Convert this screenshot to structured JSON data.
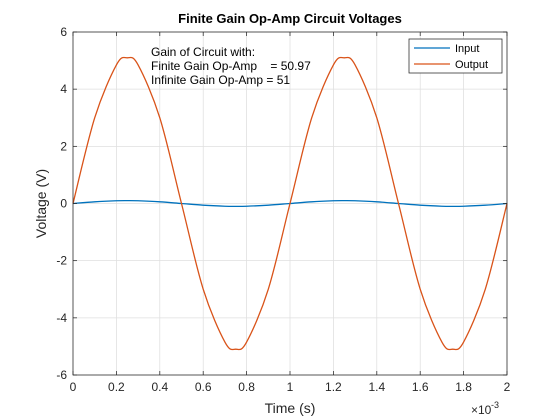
{
  "chart_data": {
    "type": "line",
    "title": "Finite Gain Op-Amp Circuit Voltages",
    "xlabel": "Time (s)",
    "ylabel": "Voltage (V)",
    "x_exponent_label": "×10",
    "x_exponent_power": "-3",
    "xlim": [
      0,
      0.002
    ],
    "ylim": [
      -6,
      6
    ],
    "x_ticks": [
      0,
      0.0002,
      0.0004,
      0.0006,
      0.0008,
      0.001,
      0.0012,
      0.0014,
      0.0016,
      0.0018,
      0.002
    ],
    "x_tick_labels": [
      "0",
      "0.2",
      "0.4",
      "0.6",
      "0.8",
      "1",
      "1.2",
      "1.4",
      "1.6",
      "1.8",
      "2"
    ],
    "y_ticks": [
      -6,
      -4,
      -2,
      0,
      2,
      4,
      6
    ],
    "y_tick_labels": [
      "-6",
      "-4",
      "-2",
      "0",
      "2",
      "4",
      "6"
    ],
    "grid": true,
    "legend_position": "top-right",
    "series": [
      {
        "name": "Input",
        "color": "#0072BD",
        "x": [
          0,
          0.0001,
          0.0002,
          0.00025,
          0.0003,
          0.0004,
          0.0005,
          0.0006,
          0.0007,
          0.00075,
          0.0008,
          0.0009,
          0.001,
          0.0011,
          0.0012,
          0.00125,
          0.0013,
          0.0014,
          0.0015,
          0.0016,
          0.0017,
          0.00175,
          0.0018,
          0.0019,
          0.002
        ],
        "y": [
          0,
          0.0588,
          0.0951,
          0.1,
          0.0951,
          0.0588,
          0,
          -0.0588,
          -0.0951,
          -0.1,
          -0.0951,
          -0.0588,
          0,
          0.0588,
          0.0951,
          0.1,
          0.0951,
          0.0588,
          0,
          -0.0588,
          -0.0951,
          -0.1,
          -0.0951,
          -0.0588,
          0
        ]
      },
      {
        "name": "Output",
        "color": "#D95319",
        "x": [
          0,
          0.0001,
          0.0002,
          0.00025,
          0.0003,
          0.0004,
          0.0005,
          0.0006,
          0.0007,
          0.00075,
          0.0008,
          0.0009,
          0.001,
          0.0011,
          0.0012,
          0.00125,
          0.0013,
          0.0014,
          0.0015,
          0.0016,
          0.0017,
          0.00175,
          0.0018,
          0.0019,
          0.002
        ],
        "y": [
          0,
          2.996,
          4.848,
          5.097,
          4.848,
          2.996,
          0,
          -2.996,
          -4.848,
          -5.097,
          -4.848,
          -2.996,
          0,
          2.996,
          4.848,
          5.097,
          4.848,
          2.996,
          0,
          -2.996,
          -4.848,
          -5.097,
          -4.848,
          -2.996,
          0
        ]
      }
    ],
    "annotations": [
      "Gain of Circuit with:",
      "Finite Gain Op-Amp    = 50.97",
      "Infinite Gain Op-Amp = 51"
    ]
  }
}
